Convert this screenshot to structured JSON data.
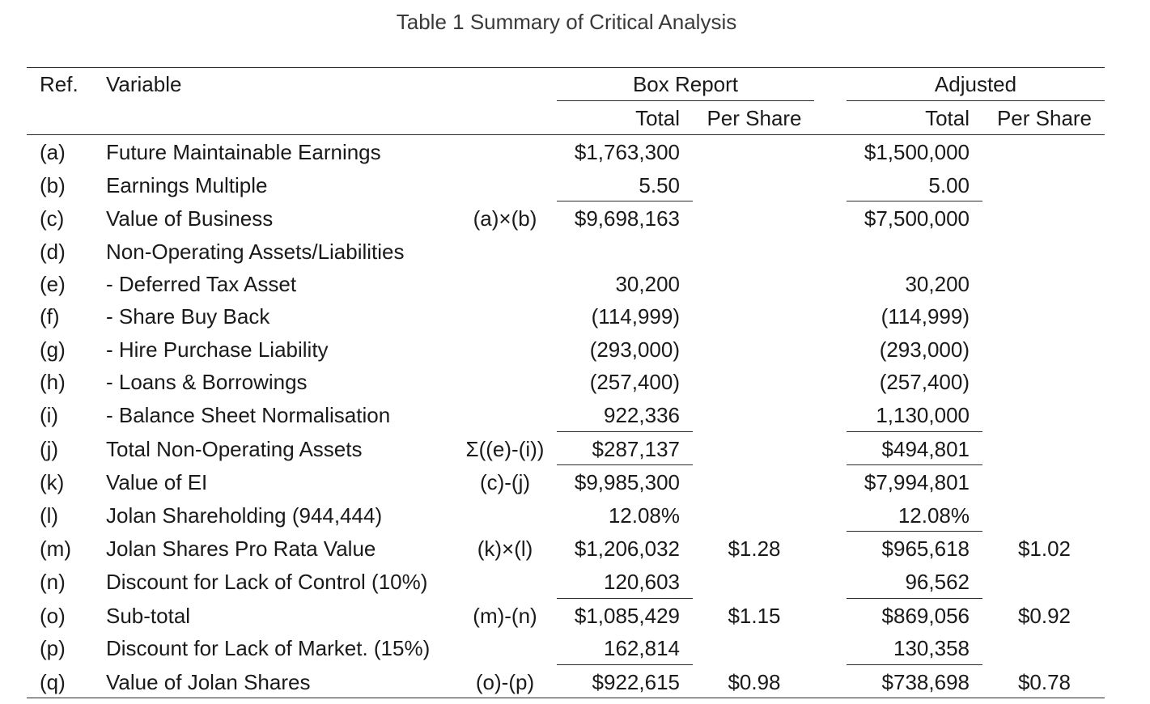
{
  "caption": "Table 1 Summary of Critical Analysis",
  "headers": {
    "ref": "Ref.",
    "variable": "Variable",
    "box_report": "Box Report",
    "adjusted": "Adjusted",
    "total": "Total",
    "per_share": "Per Share"
  },
  "rows": [
    {
      "ref": "(a)",
      "variable": "Future Maintainable Earnings",
      "formula": "",
      "box_total": "$1,763,300",
      "box_ps": "",
      "adj_total": "$1,500,000",
      "adj_ps": ""
    },
    {
      "ref": "(b)",
      "variable": "Earnings Multiple",
      "formula": "",
      "box_total": "5.50",
      "box_ps": "",
      "adj_total": "5.00",
      "adj_ps": ""
    },
    {
      "ref": "(c)",
      "variable": "Value of Business",
      "formula": "(a)×(b)",
      "box_total": "$9,698,163",
      "box_ps": "",
      "adj_total": "$7,500,000",
      "adj_ps": ""
    },
    {
      "ref": "(d)",
      "variable": "Non-Operating Assets/Liabilities",
      "formula": "",
      "box_total": "",
      "box_ps": "",
      "adj_total": "",
      "adj_ps": ""
    },
    {
      "ref": "(e)",
      "variable": "- Deferred Tax Asset",
      "formula": "",
      "box_total": "30,200",
      "box_ps": "",
      "adj_total": "30,200",
      "adj_ps": ""
    },
    {
      "ref": "(f)",
      "variable": "- Share Buy Back",
      "formula": "",
      "box_total": "(114,999)",
      "box_ps": "",
      "adj_total": "(114,999)",
      "adj_ps": ""
    },
    {
      "ref": "(g)",
      "variable": "- Hire Purchase Liability",
      "formula": "",
      "box_total": "(293,000)",
      "box_ps": "",
      "adj_total": "(293,000)",
      "adj_ps": ""
    },
    {
      "ref": "(h)",
      "variable": "- Loans & Borrowings",
      "formula": "",
      "box_total": "(257,400)",
      "box_ps": "",
      "adj_total": "(257,400)",
      "adj_ps": ""
    },
    {
      "ref": "(i)",
      "variable": "- Balance Sheet Normalisation",
      "formula": "",
      "box_total": "922,336",
      "box_ps": "",
      "adj_total": "1,130,000",
      "adj_ps": ""
    },
    {
      "ref": "(j)",
      "variable": "Total Non-Operating Assets",
      "formula": "Σ((e)-(i))",
      "box_total": "$287,137",
      "box_ps": "",
      "adj_total": "$494,801",
      "adj_ps": ""
    },
    {
      "ref": "(k)",
      "variable": "Value of EI",
      "formula": "(c)-(j)",
      "box_total": "$9,985,300",
      "box_ps": "",
      "adj_total": "$7,994,801",
      "adj_ps": ""
    },
    {
      "ref": "(l)",
      "variable": "Jolan Shareholding (944,444)",
      "formula": "",
      "box_total": "12.08%",
      "box_ps": "",
      "adj_total": "12.08%",
      "adj_ps": ""
    },
    {
      "ref": "(m)",
      "variable": "Jolan Shares Pro Rata Value",
      "formula": "(k)×(l)",
      "box_total": "$1,206,032",
      "box_ps": "$1.28",
      "adj_total": "$965,618",
      "adj_ps": "$1.02"
    },
    {
      "ref": "(n)",
      "variable": "Discount for Lack of Control (10%)",
      "formula": "",
      "box_total": "120,603",
      "box_ps": "",
      "adj_total": "96,562",
      "adj_ps": ""
    },
    {
      "ref": "(o)",
      "variable": "Sub-total",
      "formula": "(m)-(n)",
      "box_total": "$1,085,429",
      "box_ps": "$1.15",
      "adj_total": "$869,056",
      "adj_ps": "$0.92"
    },
    {
      "ref": "(p)",
      "variable": "Discount for Lack of Market. (15%)",
      "formula": "",
      "box_total": "162,814",
      "box_ps": "",
      "adj_total": "130,358",
      "adj_ps": ""
    },
    {
      "ref": "(q)",
      "variable": "Value of Jolan Shares",
      "formula": "(o)-(p)",
      "box_total": "$922,615",
      "box_ps": "$0.98",
      "adj_total": "$738,698",
      "adj_ps": "$0.78"
    }
  ]
}
